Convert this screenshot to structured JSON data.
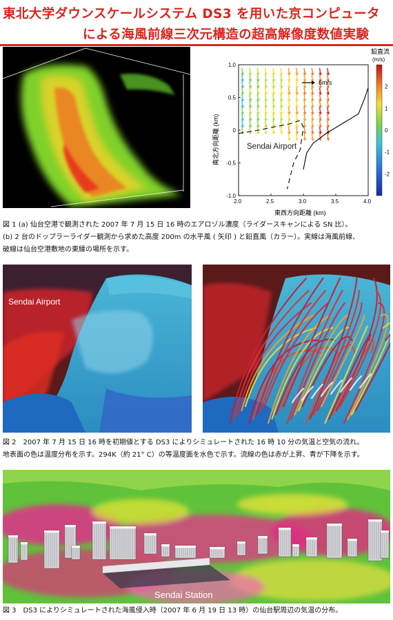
{
  "title": {
    "line1": "東北大学ダウンスケールシステム DS3 を用いた京コンピュータ",
    "line2": "による海風前線三次元構造の超高解像度数値実験"
  },
  "fig1": {
    "caption": [
      "図 1 (a) 仙台空港で観測された 2007 年 7 月 15 日 16 時のエアロゾル濃度（ライダースキャンによる SN 比）。",
      "(b) 2 台のドップラーライダー観測から求めた高度 200m の水平風 ( 矢印 ) と鉛直風（カラー）。実線は海風前線、",
      "破線は仙台空港敷地の東縁の場所を示す。"
    ],
    "plot": {
      "colorbar_title": "鉛直流",
      "colorbar_unit": "(m/s)",
      "colorbar_ticks": [
        "2",
        "1",
        "0",
        "-1",
        "-2"
      ],
      "xlabel": "東西方向距離 (km)",
      "ylabel": "南北方向距離 (km)",
      "legend_arrow": "6m/s",
      "annotation": "Sendai Airport"
    }
  },
  "fig2": {
    "label": "Sendai Airport",
    "caption": [
      "図 2　2007 年 7 月 15 日 16 時を初期値とする DS3 によりシミュレートされた 16 時 10 分の気温と空気の流れ。",
      "地表面の色は温度分布を示す。294K（約 21° C）の等温度面を水色で示す。流線の色は赤が上昇、青が下降を示す。"
    ]
  },
  "fig3": {
    "label": "Sendai Station",
    "caption": [
      "図 3　DS3 によりシミュレートされた海風侵入時（2007 年 6 月 19 日 13 時）の仙台駅周辺の気温の分布。"
    ]
  },
  "chart_data": {
    "type": "scatter",
    "xlabel": "東西方向距離 (km)",
    "ylabel": "南北方向距離 (km)",
    "xlim": [
      2.0,
      4.0
    ],
    "ylim": [
      -1.0,
      1.0
    ],
    "xticks": [
      "2.0",
      "2.5",
      "3.0",
      "3.5",
      "4.0"
    ],
    "yticks": [
      "1.0",
      "0.5",
      "0",
      "-0.5",
      "-1.0"
    ],
    "colorbar": {
      "label": "鉛直流 (m/s)",
      "range": [
        -3,
        3
      ],
      "ticks": [
        2,
        1,
        0,
        -1,
        -2
      ]
    },
    "legend_arrow": "6m/s",
    "annotation": "Sendai Airport",
    "front_line": [
      [
        3.0,
        -0.6
      ],
      [
        3.05,
        -0.35
      ],
      [
        3.15,
        -0.2
      ],
      [
        3.35,
        -0.05
      ],
      [
        3.6,
        0.1
      ],
      [
        3.85,
        0.25
      ],
      [
        3.95,
        0.5
      ],
      [
        4.0,
        0.65
      ]
    ],
    "airport_edge": [
      [
        2.0,
        -0.05
      ],
      [
        2.3,
        0.0
      ],
      [
        2.55,
        0.05
      ],
      [
        2.8,
        0.1
      ],
      [
        2.95,
        0.15
      ],
      [
        3.0,
        0.05
      ],
      [
        2.95,
        -0.3
      ],
      [
        2.85,
        -0.5
      ],
      [
        2.75,
        -0.9
      ]
    ]
  }
}
